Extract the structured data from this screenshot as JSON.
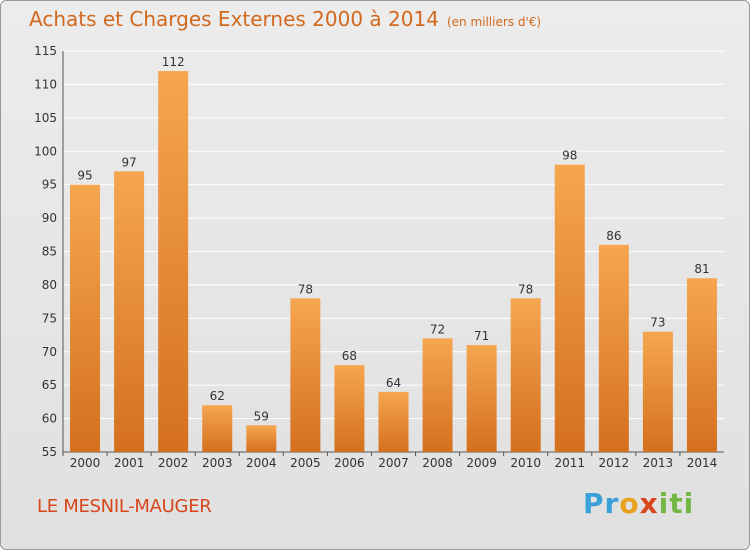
{
  "title": "Achats et Charges Externes 2000 à 2014",
  "unit": "(en milliers d'€)",
  "city": "LE MESNIL-MAUGER",
  "logo": [
    "P",
    "r",
    "o",
    "x",
    "i",
    "t",
    "i"
  ],
  "colors": {
    "bar_light": "#f6a650",
    "bar_dark": "#d4701e",
    "title": "#d2691e",
    "city": "#d9461a",
    "grid": "#ffffff"
  },
  "chart_data": {
    "type": "bar",
    "title": "Achats et Charges Externes 2000 à 2014",
    "subtitle": "(en milliers d'€)",
    "categories": [
      "2000",
      "2001",
      "2002",
      "2003",
      "2004",
      "2005",
      "2006",
      "2007",
      "2008",
      "2009",
      "2010",
      "2011",
      "2012",
      "2013",
      "2014"
    ],
    "values": [
      95,
      97,
      112,
      62,
      59,
      78,
      68,
      64,
      72,
      71,
      78,
      98,
      86,
      73,
      81
    ],
    "ylim": [
      55,
      115
    ],
    "yticks": [
      55,
      60,
      65,
      70,
      75,
      80,
      85,
      90,
      95,
      100,
      105,
      110,
      115
    ],
    "grid": true,
    "data_labels": true
  }
}
